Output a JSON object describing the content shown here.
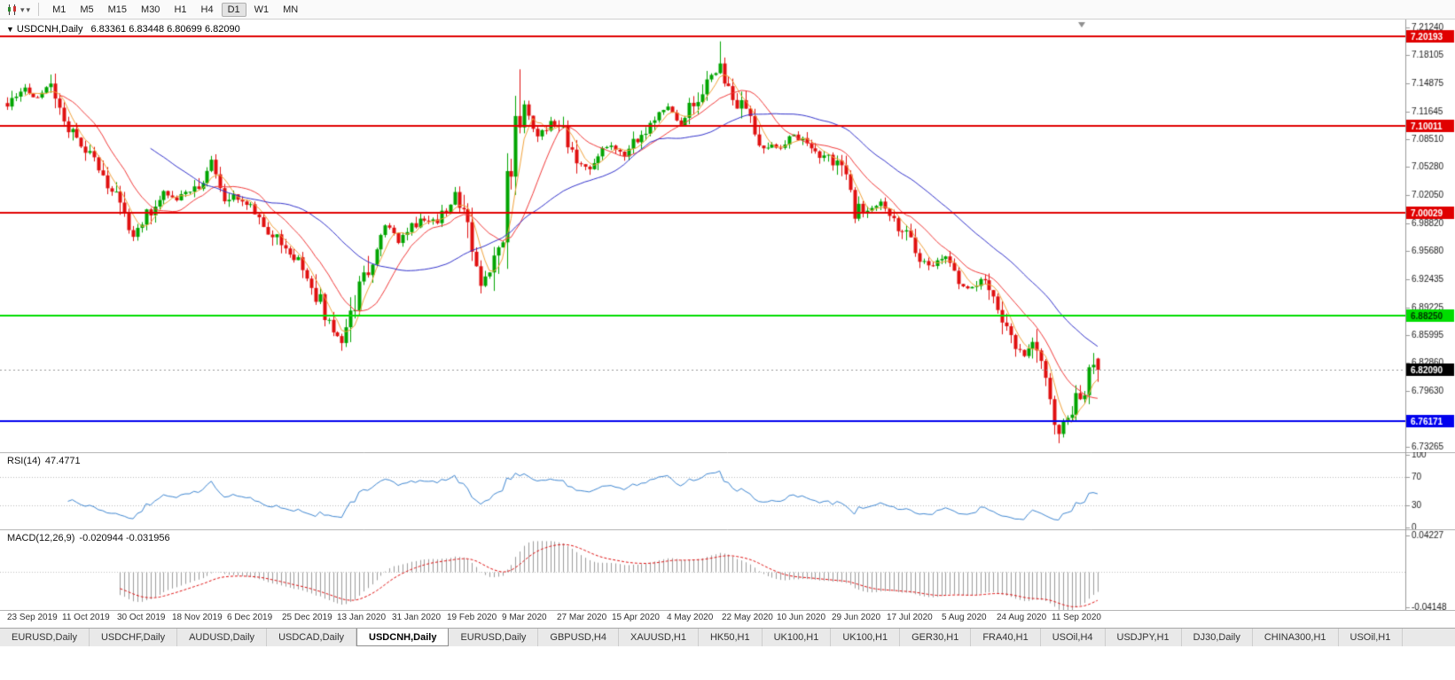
{
  "toolbar": {
    "timeframes": [
      "M1",
      "M5",
      "M15",
      "M30",
      "H1",
      "H4",
      "D1",
      "W1",
      "MN"
    ],
    "active_timeframe": "D1"
  },
  "main_chart": {
    "collapse_arrow": "▼",
    "symbol_title": "USDCNH,Daily",
    "ohlc_text": "6.83361 6.83448 6.80699 6.82090",
    "price_ticks": [
      "7.21240",
      "7.18105",
      "7.14875",
      "7.11645",
      "7.08510",
      "7.05280",
      "7.02050",
      "6.98820",
      "6.95680",
      "6.92435",
      "6.89225",
      "6.85995",
      "6.82860",
      "6.79630",
      "6.76400",
      "6.73265"
    ],
    "hlines": [
      {
        "price": 7.20193,
        "label": "7.20193",
        "color": "#e00000",
        "text_color": "#ffffff"
      },
      {
        "price": 7.10011,
        "label": "7.10011",
        "color": "#e00000",
        "text_color": "#ffffff"
      },
      {
        "price": 7.00029,
        "label": "7.00029",
        "color": "#e00000",
        "text_color": "#ffffff"
      },
      {
        "price": 6.8825,
        "label": "6.88250",
        "color": "#00dd00",
        "text_color": "#003300"
      },
      {
        "price": 6.76171,
        "label": "6.76171",
        "color": "#0000ee",
        "text_color": "#ffffff"
      }
    ],
    "price_badge": {
      "label": "6.82090",
      "bg": "#000000",
      "text_color": "#ffffff"
    }
  },
  "rsi_panel": {
    "title": "RSI(14)",
    "value": "47.4771",
    "axis_labels": [
      "100",
      "70",
      "30",
      "0"
    ],
    "levels": [
      70,
      30
    ],
    "line_color": "#3f87d2"
  },
  "macd_panel": {
    "title": "MACD(12,26,9)",
    "values": "-0.020944 -0.031956",
    "axis_labels": [
      "0.04227",
      "-0.04148"
    ],
    "histogram_color": "#9c9c9c",
    "signal_color": "#e01010"
  },
  "date_axis": {
    "labels": [
      "23 Sep 2019",
      "11 Oct 2019",
      "30 Oct 2019",
      "18 Nov 2019",
      "6 Dec 2019",
      "25 Dec 2019",
      "13 Jan 2020",
      "31 Jan 2020",
      "19 Feb 2020",
      "9 Mar 2020",
      "27 Mar 2020",
      "15 Apr 2020",
      "4 May 2020",
      "22 May 2020",
      "10 Jun 2020",
      "29 Jun 2020",
      "17 Jul 2020",
      "5 Aug 2020",
      "24 Aug 2020",
      "11 Sep 2020"
    ]
  },
  "tabs": {
    "active_index": 4,
    "items": [
      "EURUSD,Daily",
      "USDCHF,Daily",
      "AUDUSD,Daily",
      "USDCAD,Daily",
      "USDCNH,Daily",
      "EURUSD,Daily",
      "GBPUSD,H4",
      "XAUUSD,H1",
      "HK50,H1",
      "UK100,H1",
      "UK100,H1",
      "GER30,H1",
      "FRA40,H1",
      "USOil,H4",
      "USDJPY,H1",
      "DJ30,Daily",
      "CHINA300,H1",
      "USOil,H1"
    ]
  },
  "chart_data": {
    "type": "candlestick",
    "symbol": "USDCNH",
    "timeframe": "Daily",
    "price_range": [
      6.73265,
      7.2124
    ],
    "n_candles": 252,
    "ohlc_last": {
      "open": 6.83361,
      "high": 6.83448,
      "low": 6.80699,
      "close": 6.8209
    },
    "close_anchors": [
      [
        0,
        7.12
      ],
      [
        4,
        7.142
      ],
      [
        7,
        7.13
      ],
      [
        10,
        7.148
      ],
      [
        14,
        7.096
      ],
      [
        18,
        7.072
      ],
      [
        22,
        7.045
      ],
      [
        26,
        7.012
      ],
      [
        29,
        6.972
      ],
      [
        32,
        7.0
      ],
      [
        36,
        7.022
      ],
      [
        39,
        7.012
      ],
      [
        42,
        7.028
      ],
      [
        45,
        7.035
      ],
      [
        47,
        7.058
      ],
      [
        49,
        7.022
      ],
      [
        53,
        7.018
      ],
      [
        57,
        7.002
      ],
      [
        61,
        6.976
      ],
      [
        65,
        6.96
      ],
      [
        69,
        6.932
      ],
      [
        72,
        6.898
      ],
      [
        75,
        6.862
      ],
      [
        77,
        6.85
      ],
      [
        79,
        6.878
      ],
      [
        82,
        6.93
      ],
      [
        85,
        6.962
      ],
      [
        87,
        6.99
      ],
      [
        90,
        6.968
      ],
      [
        93,
        6.984
      ],
      [
        96,
        6.992
      ],
      [
        99,
        6.99
      ],
      [
        103,
        7.02
      ],
      [
        106,
        6.978
      ],
      [
        109,
        6.92
      ],
      [
        112,
        6.952
      ],
      [
        114,
        6.99
      ],
      [
        117,
        7.098
      ],
      [
        119,
        7.118
      ],
      [
        122,
        7.088
      ],
      [
        125,
        7.102
      ],
      [
        128,
        7.094
      ],
      [
        131,
        7.058
      ],
      [
        134,
        7.052
      ],
      [
        136,
        7.068
      ],
      [
        139,
        7.076
      ],
      [
        142,
        7.068
      ],
      [
        145,
        7.088
      ],
      [
        148,
        7.1
      ],
      [
        152,
        7.122
      ],
      [
        155,
        7.1
      ],
      [
        158,
        7.128
      ],
      [
        161,
        7.148
      ],
      [
        164,
        7.168
      ],
      [
        167,
        7.128
      ],
      [
        170,
        7.118
      ],
      [
        173,
        7.082
      ],
      [
        177,
        7.074
      ],
      [
        181,
        7.09
      ],
      [
        185,
        7.074
      ],
      [
        189,
        7.062
      ],
      [
        193,
        7.048
      ],
      [
        195,
        7.002
      ],
      [
        198,
        7.002
      ],
      [
        201,
        7.012
      ],
      [
        204,
        6.992
      ],
      [
        207,
        6.972
      ],
      [
        210,
        6.95
      ],
      [
        213,
        6.94
      ],
      [
        216,
        6.952
      ],
      [
        219,
        6.922
      ],
      [
        222,
        6.914
      ],
      [
        224,
        6.926
      ],
      [
        227,
        6.9
      ],
      [
        230,
        6.868
      ],
      [
        232,
        6.845
      ],
      [
        234,
        6.842
      ],
      [
        236,
        6.848
      ],
      [
        238,
        6.82
      ],
      [
        240,
        6.782
      ],
      [
        242,
        6.752
      ],
      [
        244,
        6.768
      ],
      [
        246,
        6.788
      ],
      [
        248,
        6.8
      ],
      [
        250,
        6.8335
      ],
      [
        251,
        6.8209
      ]
    ],
    "key_extremes": [
      {
        "i": 10,
        "high": 7.1585
      },
      {
        "i": 47,
        "high": 7.0655
      },
      {
        "i": 77,
        "low": 6.8425
      },
      {
        "i": 118,
        "high": 7.1645
      },
      {
        "i": 164,
        "high": 7.1965
      },
      {
        "i": 242,
        "low": 6.7368
      },
      {
        "i": 250,
        "high": 6.84
      }
    ],
    "up_color": "#00a500",
    "down_color": "#e01010",
    "moving_averages": [
      {
        "period": 5,
        "color": "#f2a33c"
      },
      {
        "period": 13,
        "color": "#f23b3b"
      },
      {
        "period": 34,
        "color": "#3333cc"
      }
    ],
    "indicators": {
      "rsi_period": 14,
      "macd_fast": 12,
      "macd_slow": 26,
      "macd_signal": 9
    }
  }
}
